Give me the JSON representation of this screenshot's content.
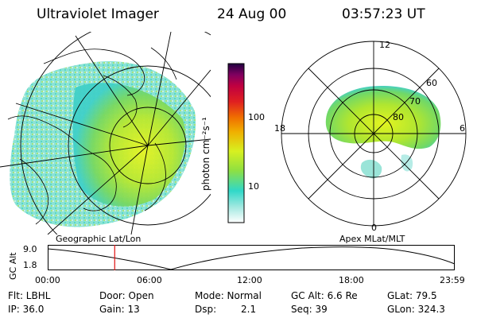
{
  "header": {
    "instrument": "Ultraviolet Imager",
    "date": "24 Aug 00",
    "time": "03:57:23 UT"
  },
  "left_panel": {
    "caption": "Geographic Lat/Lon"
  },
  "right_panel": {
    "caption": "Apex MLat/MLT",
    "mlt_labels": [
      "12",
      "18",
      "6",
      "0"
    ],
    "mlat_labels": [
      "60",
      "70",
      "80"
    ]
  },
  "colorbar": {
    "unit_label": "photon cm⁻²s⁻¹",
    "ticks": [
      {
        "label": "100",
        "value": 100
      },
      {
        "label": "10",
        "value": 10
      }
    ],
    "scale": "log",
    "colors": [
      "#ffffff",
      "#a0e8e0",
      "#30d8c8",
      "#90e040",
      "#d8f020",
      "#f0b000",
      "#f07000",
      "#e02020",
      "#c00040",
      "#800060",
      "#200040"
    ]
  },
  "altitude_plot": {
    "ylabel": "GC Alt",
    "yticks": [
      "9.0",
      "1.8"
    ],
    "xticks": [
      "00:00",
      "06:00",
      "12:00",
      "18:00",
      "23:59"
    ],
    "marker_time": "03:57",
    "marker_color": "#e01010"
  },
  "info": {
    "flt": "Flt: LBHL",
    "ip": "IP: 36.0",
    "door": "Door: Open",
    "gain": "Gain: 13",
    "mode": "Mode: Normal",
    "dsp_label": "Dsp:",
    "dsp_value": "2.1",
    "gc_alt": "GC Alt: 6.6 Re",
    "seq": "Seq: 39",
    "glat": "GLat:  79.5",
    "glon": "GLon: 324.3"
  }
}
